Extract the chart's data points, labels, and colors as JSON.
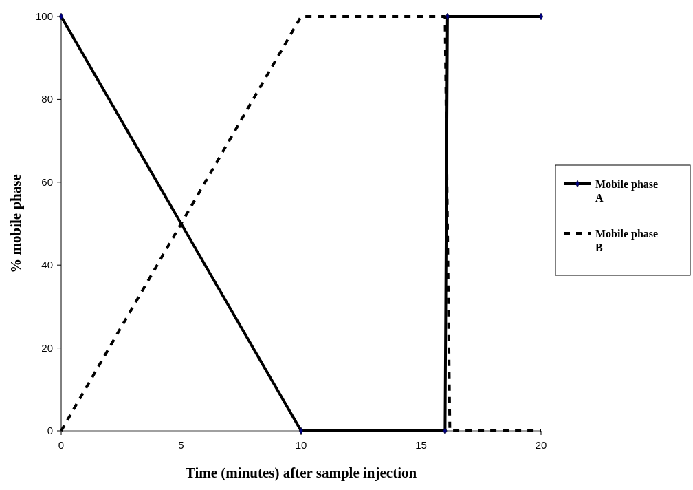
{
  "chart_data": {
    "type": "line",
    "xlabel": "Time (minutes) after sample injection",
    "ylabel": "% mobile phase",
    "xlim": [
      0,
      20
    ],
    "xticks": [
      0,
      5,
      10,
      15,
      20
    ],
    "ylim": [
      0,
      100
    ],
    "yticks": [
      0,
      20,
      40,
      60,
      80,
      100
    ],
    "grid": false,
    "legend": "right",
    "series": [
      {
        "name": "Mobile phase A",
        "color": "#000000",
        "x": [
          0,
          10,
          16,
          16.1,
          20
        ],
        "values": [
          100,
          0,
          0,
          100,
          100
        ],
        "line_style": "solid",
        "marker": "diamond"
      },
      {
        "name": "Mobile phase B",
        "color": "#000000",
        "x": [
          0,
          10,
          16,
          16.2,
          20
        ],
        "values": [
          0,
          100,
          100,
          0,
          0
        ],
        "line_style": "dashed",
        "marker": "none"
      }
    ]
  }
}
